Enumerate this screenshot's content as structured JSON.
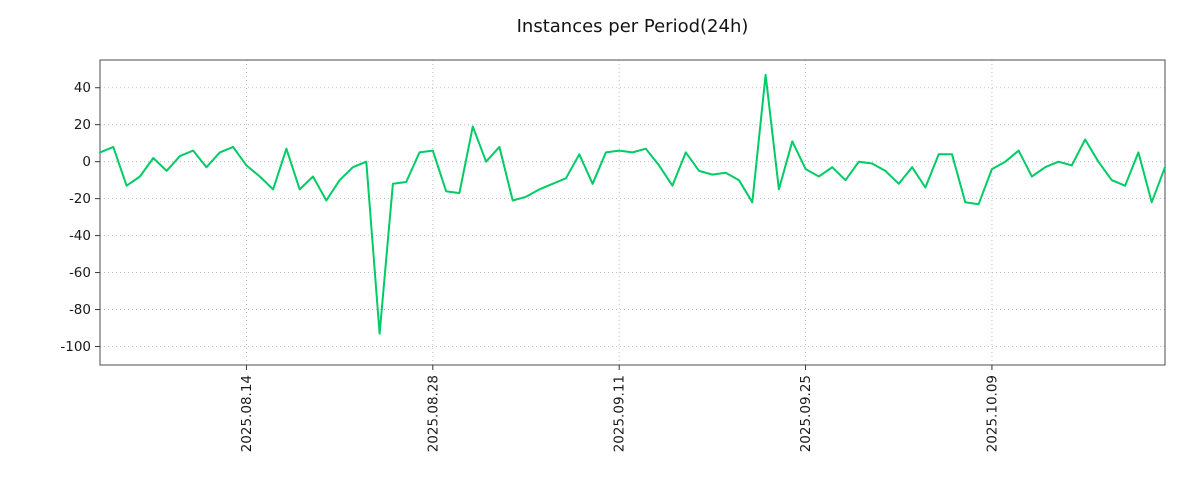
{
  "page": {
    "background": "#ffffff"
  },
  "chart_data": {
    "type": "line",
    "title": "Instances per Period(24h)",
    "xlabel": "",
    "ylabel": "",
    "ylim": [
      -110,
      55
    ],
    "yticks": [
      -100,
      -80,
      -60,
      -40,
      -20,
      0,
      20,
      40
    ],
    "xticks": [
      {
        "label": "2025.08.14",
        "index": 11
      },
      {
        "label": "2025.08.28",
        "index": 25
      },
      {
        "label": "2025.09.11",
        "index": 39
      },
      {
        "label": "2025.09.25",
        "index": 53
      },
      {
        "label": "2025.10.09",
        "index": 67
      }
    ],
    "x_range_estimate": [
      "2025.08.03",
      "2025.10.22"
    ],
    "points_are_daily": true,
    "grid": true,
    "legend_position": "none",
    "line_color": "#00cc66",
    "series": [
      {
        "name": "instances",
        "values": [
          5,
          8,
          -13,
          -8,
          2,
          -5,
          3,
          6,
          -3,
          5,
          8,
          -2,
          -8,
          -15,
          7,
          -15,
          -8,
          -21,
          -10,
          -3,
          0,
          -93,
          -12,
          -11,
          5,
          6,
          -16,
          -17,
          19,
          0,
          8,
          -21,
          -19,
          -15,
          -12,
          -9,
          4,
          -12,
          5,
          6,
          5,
          7,
          -2,
          -13,
          5,
          -5,
          -7,
          -6,
          -10,
          -22,
          47,
          -15,
          11,
          -4,
          -8,
          -3,
          -10,
          0,
          -1,
          -5,
          -12,
          -3,
          -14,
          4,
          4,
          -22,
          -23,
          -4,
          0,
          6,
          -8,
          -3,
          0,
          -2,
          12,
          0,
          -10,
          -13,
          5,
          -22,
          -3
        ]
      }
    ]
  }
}
